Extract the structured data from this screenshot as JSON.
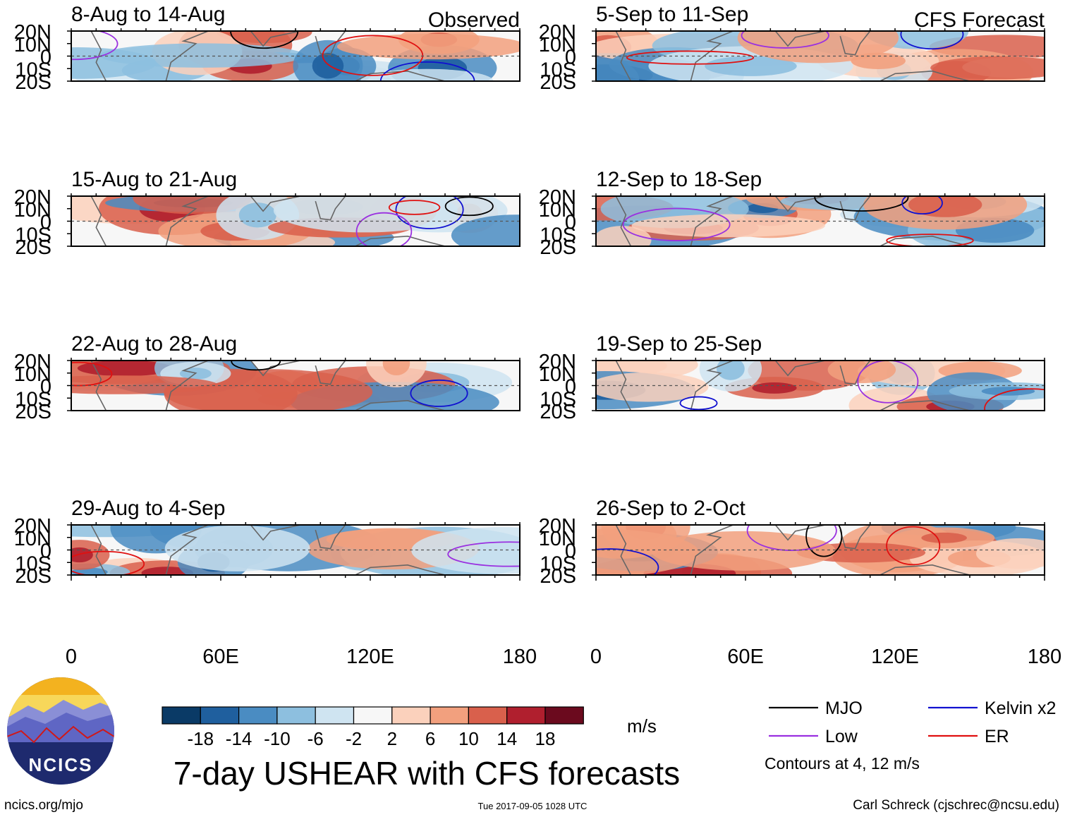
{
  "chart_data": {
    "type": "heatmap",
    "title": "7-day USHEAR with CFS forecasts",
    "variable": "USHEAR",
    "units": "m/s",
    "x_ticks": [
      "0",
      "60E",
      "120E",
      "180"
    ],
    "x_range": [
      0,
      180
    ],
    "y_ticks": [
      "20N",
      "10N",
      "0",
      "10S",
      "20S"
    ],
    "y_range": [
      -20,
      20
    ],
    "columns": [
      {
        "label": "Observed",
        "panels": [
          "8-Aug to 14-Aug",
          "15-Aug to 21-Aug",
          "22-Aug to 28-Aug",
          "29-Aug to 4-Sep"
        ]
      },
      {
        "label": "CFS Forecast",
        "panels": [
          "5-Sep to 11-Sep",
          "12-Sep to 18-Sep",
          "19-Sep to 25-Sep",
          "26-Sep to 2-Oct"
        ]
      }
    ],
    "colorbar": {
      "ticks": [
        "-18",
        "-14",
        "-10",
        "-6",
        "-2",
        "2",
        "6",
        "10",
        "14",
        "18"
      ],
      "colors": [
        "#0a3a66",
        "#1f5f9e",
        "#4a8cc2",
        "#8dbfdf",
        "#cfe4f1",
        "#f7f7f7",
        "#fbd1bc",
        "#f2a07e",
        "#d9604c",
        "#b01f2e",
        "#6b0a1e"
      ]
    },
    "legend": {
      "items": [
        {
          "label": "MJO",
          "color": "#000000"
        },
        {
          "label": "Kelvin x2",
          "color": "#1010d0"
        },
        {
          "label": "Low",
          "color": "#9a30e0"
        },
        {
          "label": "ER",
          "color": "#e01010"
        }
      ],
      "note": "Contours at 4, 12 m/s"
    }
  },
  "footer": {
    "logo_text": "NCICS",
    "site": "ncics.org/mjo",
    "timestamp": "Tue 2017-09-05 1028 UTC",
    "credit": "Carl Schreck (cjschrec@ncsu.edu)"
  }
}
